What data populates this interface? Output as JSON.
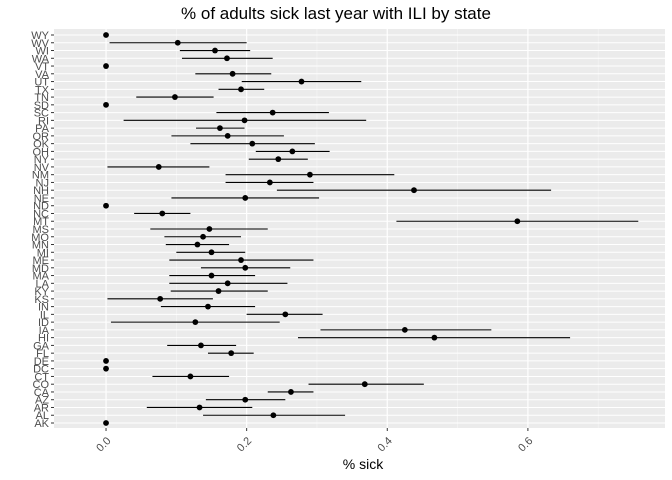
{
  "chart_data": {
    "type": "scatter",
    "title": "% of adults sick last year with ILI by state",
    "xlabel": "% sick",
    "ylabel": "",
    "xlim": [
      -0.074,
      0.795
    ],
    "x_ticks": [
      0.0,
      0.2,
      0.4,
      0.6
    ],
    "x_tick_labels": [
      "0.0",
      "0.2",
      "0.4",
      "0.6"
    ],
    "grid": true,
    "series": [
      {
        "points": [
          {
            "state": "AK",
            "estimate": 0.0,
            "lower": 0.0,
            "upper": 0.0
          },
          {
            "state": "AL",
            "estimate": 0.238,
            "lower": 0.138,
            "upper": 0.34
          },
          {
            "state": "AR",
            "estimate": 0.133,
            "lower": 0.058,
            "upper": 0.208
          },
          {
            "state": "AZ",
            "estimate": 0.198,
            "lower": 0.142,
            "upper": 0.255
          },
          {
            "state": "CA",
            "estimate": 0.263,
            "lower": 0.23,
            "upper": 0.295
          },
          {
            "state": "CO",
            "estimate": 0.368,
            "lower": 0.288,
            "upper": 0.452
          },
          {
            "state": "CT",
            "estimate": 0.12,
            "lower": 0.066,
            "upper": 0.175
          },
          {
            "state": "DC",
            "estimate": 0.0,
            "lower": 0.0,
            "upper": 0.0
          },
          {
            "state": "DE",
            "estimate": 0.0,
            "lower": 0.0,
            "upper": 0.0
          },
          {
            "state": "FL",
            "estimate": 0.178,
            "lower": 0.145,
            "upper": 0.21
          },
          {
            "state": "GA",
            "estimate": 0.135,
            "lower": 0.087,
            "upper": 0.185
          },
          {
            "state": "HI",
            "estimate": 0.467,
            "lower": 0.273,
            "upper": 0.66
          },
          {
            "state": "IA",
            "estimate": 0.425,
            "lower": 0.305,
            "upper": 0.548
          },
          {
            "state": "ID",
            "estimate": 0.127,
            "lower": 0.007,
            "upper": 0.247
          },
          {
            "state": "IL",
            "estimate": 0.255,
            "lower": 0.2,
            "upper": 0.308
          },
          {
            "state": "IN",
            "estimate": 0.145,
            "lower": 0.078,
            "upper": 0.212
          },
          {
            "state": "KS",
            "estimate": 0.077,
            "lower": 0.002,
            "upper": 0.152
          },
          {
            "state": "KY",
            "estimate": 0.16,
            "lower": 0.092,
            "upper": 0.23
          },
          {
            "state": "LA",
            "estimate": 0.173,
            "lower": 0.09,
            "upper": 0.258
          },
          {
            "state": "MA",
            "estimate": 0.15,
            "lower": 0.09,
            "upper": 0.212
          },
          {
            "state": "MD",
            "estimate": 0.198,
            "lower": 0.135,
            "upper": 0.262
          },
          {
            "state": "ME",
            "estimate": 0.192,
            "lower": 0.09,
            "upper": 0.295
          },
          {
            "state": "MI",
            "estimate": 0.15,
            "lower": 0.1,
            "upper": 0.198
          },
          {
            "state": "MN",
            "estimate": 0.13,
            "lower": 0.085,
            "upper": 0.175
          },
          {
            "state": "MO",
            "estimate": 0.138,
            "lower": 0.083,
            "upper": 0.192
          },
          {
            "state": "MS",
            "estimate": 0.147,
            "lower": 0.063,
            "upper": 0.23
          },
          {
            "state": "MT",
            "estimate": 0.585,
            "lower": 0.413,
            "upper": 0.757
          },
          {
            "state": "NC",
            "estimate": 0.08,
            "lower": 0.04,
            "upper": 0.12
          },
          {
            "state": "ND",
            "estimate": 0.0,
            "lower": 0.0,
            "upper": 0.0
          },
          {
            "state": "NE",
            "estimate": 0.198,
            "lower": 0.093,
            "upper": 0.303
          },
          {
            "state": "NH",
            "estimate": 0.438,
            "lower": 0.243,
            "upper": 0.633
          },
          {
            "state": "NJ",
            "estimate": 0.233,
            "lower": 0.17,
            "upper": 0.295
          },
          {
            "state": "NM",
            "estimate": 0.29,
            "lower": 0.17,
            "upper": 0.41
          },
          {
            "state": "NV",
            "estimate": 0.075,
            "lower": 0.002,
            "upper": 0.147
          },
          {
            "state": "NY",
            "estimate": 0.245,
            "lower": 0.203,
            "upper": 0.287
          },
          {
            "state": "OH",
            "estimate": 0.265,
            "lower": 0.213,
            "upper": 0.318
          },
          {
            "state": "OK",
            "estimate": 0.208,
            "lower": 0.12,
            "upper": 0.297
          },
          {
            "state": "OR",
            "estimate": 0.173,
            "lower": 0.093,
            "upper": 0.253
          },
          {
            "state": "PA",
            "estimate": 0.162,
            "lower": 0.128,
            "upper": 0.197
          },
          {
            "state": "RI",
            "estimate": 0.197,
            "lower": 0.025,
            "upper": 0.37
          },
          {
            "state": "SC",
            "estimate": 0.237,
            "lower": 0.157,
            "upper": 0.317
          },
          {
            "state": "SD",
            "estimate": 0.0,
            "lower": 0.0,
            "upper": 0.0
          },
          {
            "state": "TN",
            "estimate": 0.098,
            "lower": 0.043,
            "upper": 0.153
          },
          {
            "state": "TX",
            "estimate": 0.192,
            "lower": 0.16,
            "upper": 0.225
          },
          {
            "state": "UT",
            "estimate": 0.278,
            "lower": 0.193,
            "upper": 0.363
          },
          {
            "state": "VA",
            "estimate": 0.18,
            "lower": 0.127,
            "upper": 0.235
          },
          {
            "state": "VT",
            "estimate": 0.0,
            "lower": 0.0,
            "upper": 0.0
          },
          {
            "state": "WA",
            "estimate": 0.172,
            "lower": 0.108,
            "upper": 0.237
          },
          {
            "state": "WI",
            "estimate": 0.155,
            "lower": 0.105,
            "upper": 0.205
          },
          {
            "state": "WV",
            "estimate": 0.102,
            "lower": 0.005,
            "upper": 0.2
          },
          {
            "state": "WY",
            "estimate": 0.0,
            "lower": 0.0,
            "upper": 0.0
          }
        ]
      }
    ]
  }
}
